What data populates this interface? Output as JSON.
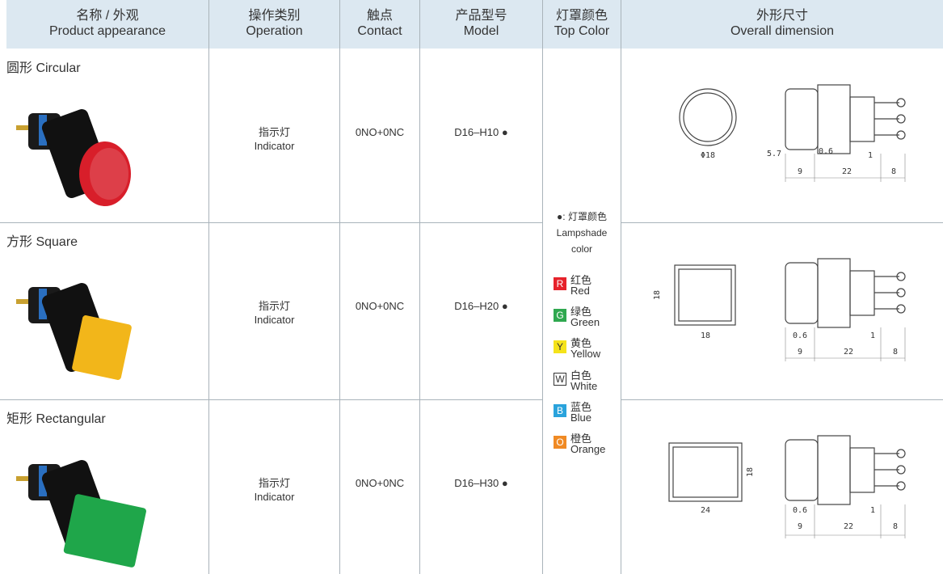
{
  "header": {
    "columns": [
      {
        "zh": "名称 / 外观",
        "en": "Product appearance"
      },
      {
        "zh": "操作类别",
        "en": "Operation"
      },
      {
        "zh": "触点",
        "en": "Contact"
      },
      {
        "zh": "产品型号",
        "en": "Model"
      },
      {
        "zh": "灯罩颜色",
        "en": "Top Color"
      },
      {
        "zh": "外形尺寸",
        "en": "Overall dimension"
      }
    ]
  },
  "rows": [
    {
      "shape": "圆形 Circular",
      "operation_zh": "指示灯",
      "operation_en": "Indicator",
      "contact": "0NO+0NC",
      "model": "D16–H10 ●",
      "cap_color": "#d81e2a",
      "dimensions": {
        "front": [
          "Φ18"
        ],
        "side": [
          "5.7",
          "0.6",
          "1",
          "9",
          "22",
          "8"
        ]
      }
    },
    {
      "shape": "方形 Square",
      "operation_zh": "指示灯",
      "operation_en": "Indicator",
      "contact": "0NO+0NC",
      "model": "D16–H20 ●",
      "cap_color": "#f2b61a",
      "dimensions": {
        "front": [
          "18",
          "18"
        ],
        "side": [
          "0.6",
          "1",
          "9",
          "22",
          "8"
        ]
      }
    },
    {
      "shape": "矩形 Rectangular",
      "operation_zh": "指示灯",
      "operation_en": "Indicator",
      "contact": "0NO+0NC",
      "model": "D16–H30 ●",
      "cap_color": "#1fa64a",
      "dimensions": {
        "front": [
          "18",
          "24"
        ],
        "side": [
          "0.6",
          "1",
          "9",
          "22",
          "8"
        ]
      }
    }
  ],
  "color_legend": {
    "title": "●: 灯罩颜色",
    "subtitle": "Lampshade color",
    "items": [
      {
        "letter": "R",
        "zh": "红色",
        "en": "Red",
        "color": "#e6222b"
      },
      {
        "letter": "G",
        "zh": "绿色",
        "en": "Green",
        "color": "#2fa84f"
      },
      {
        "letter": "Y",
        "zh": "黄色",
        "en": "Yellow",
        "color": "#f5e31a"
      },
      {
        "letter": "W",
        "zh": "白色",
        "en": "White",
        "color": "#ffffff"
      },
      {
        "letter": "B",
        "zh": "蓝色",
        "en": "Blue",
        "color": "#2aa3dc"
      },
      {
        "letter": "O",
        "zh": "橙色",
        "en": "Orange",
        "color": "#f08a24"
      }
    ]
  }
}
